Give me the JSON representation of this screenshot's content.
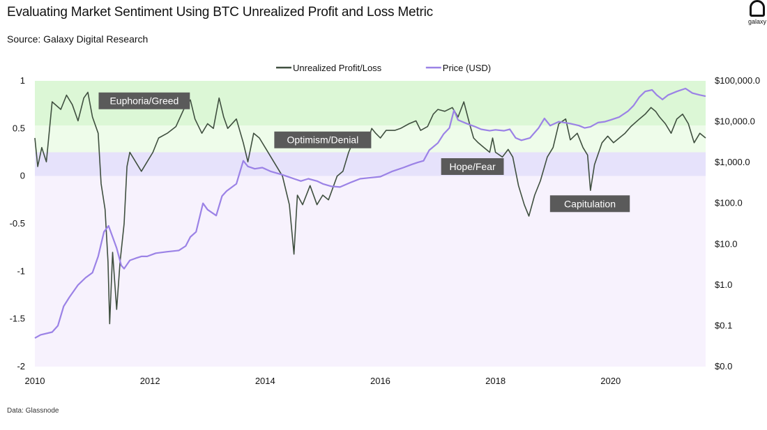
{
  "title": "Evaluating Market Sentiment Using BTC Unrealized Profit and Loss Metric",
  "subtitle": "Source: Galaxy Digital Research",
  "footnote": "Data: Glassnode",
  "logo_text": "galaxy",
  "colors": {
    "upl_line": "#3f4f3f",
    "price_line": "#9b82e6",
    "zone_euphoria": "#dcf7d6",
    "zone_optimism": "#eefcea",
    "zone_hope": "#e6e2fb",
    "zone_capitulation": "#f7f2fd",
    "label_bg": "#5a5a5a"
  },
  "chart_data": {
    "type": "line",
    "legend": {
      "position": "top-center",
      "entries": [
        "Unrealized Profit/Loss",
        "Price (USD)"
      ]
    },
    "x_ticks": [
      "2010",
      "2012",
      "2014",
      "2016",
      "2018",
      "2020"
    ],
    "x_range": [
      2010.0,
      2021.65
    ],
    "y_left": {
      "range": [
        -2,
        1
      ],
      "ticks": [
        1,
        0.5,
        0,
        -0.5,
        -1,
        -1.5,
        -2
      ],
      "tick_labels": [
        "1",
        "0.5",
        "0",
        "-0.5",
        "-1",
        "-1.5",
        "-2"
      ]
    },
    "y_right": {
      "scale": "log",
      "range": [
        0.01,
        100000
      ],
      "ticks": [
        100000,
        10000,
        1000,
        100,
        10,
        1,
        0.1,
        0.01
      ],
      "tick_labels": [
        "$100,000.0",
        "$10,000.0",
        "$1,000.0",
        "$100.0",
        "$10.0",
        "$1.0",
        "$0.1",
        "$0.0"
      ]
    },
    "zones": [
      {
        "name": "Euphoria/Greed",
        "from": 0.53,
        "to": 1.0
      },
      {
        "name": "Optimism/Denial",
        "from": 0.25,
        "to": 0.53
      },
      {
        "name": "Hope/Fear",
        "from": 0.0,
        "to": 0.25
      },
      {
        "name": "Capitulation",
        "from": -2.0,
        "to": 0.0
      }
    ],
    "zone_labels": [
      {
        "text": "Euphoria/Greed",
        "x": 2011.9,
        "y": 0.79
      },
      {
        "text": "Optimism/Denial",
        "x": 2015.0,
        "y": 0.38
      },
      {
        "text": "Hope/Fear",
        "x": 2017.6,
        "y": 0.1
      },
      {
        "text": "Capitulation",
        "x": 2019.64,
        "y": -0.29
      }
    ],
    "series": [
      {
        "name": "Unrealized Profit/Loss",
        "axis": "left",
        "points": [
          [
            2010.0,
            0.4
          ],
          [
            2010.05,
            0.1
          ],
          [
            2010.12,
            0.3
          ],
          [
            2010.2,
            0.15
          ],
          [
            2010.3,
            0.78
          ],
          [
            2010.45,
            0.7
          ],
          [
            2010.55,
            0.85
          ],
          [
            2010.65,
            0.75
          ],
          [
            2010.75,
            0.58
          ],
          [
            2010.85,
            0.82
          ],
          [
            2010.92,
            0.88
          ],
          [
            2011.0,
            0.62
          ],
          [
            2011.1,
            0.45
          ],
          [
            2011.15,
            -0.08
          ],
          [
            2011.22,
            -0.35
          ],
          [
            2011.27,
            -0.9
          ],
          [
            2011.3,
            -1.55
          ],
          [
            2011.35,
            -0.8
          ],
          [
            2011.42,
            -1.4
          ],
          [
            2011.48,
            -0.9
          ],
          [
            2011.55,
            -0.5
          ],
          [
            2011.6,
            0.1
          ],
          [
            2011.65,
            0.25
          ],
          [
            2011.75,
            0.15
          ],
          [
            2011.85,
            0.05
          ],
          [
            2011.95,
            0.15
          ],
          [
            2012.05,
            0.25
          ],
          [
            2012.15,
            0.4
          ],
          [
            2012.3,
            0.45
          ],
          [
            2012.45,
            0.52
          ],
          [
            2012.6,
            0.72
          ],
          [
            2012.7,
            0.8
          ],
          [
            2012.78,
            0.6
          ],
          [
            2012.9,
            0.45
          ],
          [
            2013.0,
            0.55
          ],
          [
            2013.1,
            0.5
          ],
          [
            2013.2,
            0.82
          ],
          [
            2013.28,
            0.62
          ],
          [
            2013.35,
            0.5
          ],
          [
            2013.5,
            0.6
          ],
          [
            2013.62,
            0.35
          ],
          [
            2013.7,
            0.15
          ],
          [
            2013.8,
            0.45
          ],
          [
            2013.9,
            0.4
          ],
          [
            2014.0,
            0.3
          ],
          [
            2014.15,
            0.15
          ],
          [
            2014.3,
            0.0
          ],
          [
            2014.42,
            -0.3
          ],
          [
            2014.5,
            -0.82
          ],
          [
            2014.56,
            -0.2
          ],
          [
            2014.65,
            -0.3
          ],
          [
            2014.78,
            -0.1
          ],
          [
            2014.9,
            -0.3
          ],
          [
            2015.0,
            -0.2
          ],
          [
            2015.1,
            -0.25
          ],
          [
            2015.25,
            0.0
          ],
          [
            2015.35,
            0.05
          ],
          [
            2015.45,
            0.25
          ],
          [
            2015.52,
            0.35
          ],
          [
            2015.6,
            0.35
          ],
          [
            2015.75,
            0.3
          ],
          [
            2015.85,
            0.5
          ],
          [
            2015.92,
            0.45
          ],
          [
            2016.0,
            0.4
          ],
          [
            2016.1,
            0.48
          ],
          [
            2016.25,
            0.48
          ],
          [
            2016.35,
            0.5
          ],
          [
            2016.5,
            0.55
          ],
          [
            2016.62,
            0.58
          ],
          [
            2016.7,
            0.48
          ],
          [
            2016.82,
            0.52
          ],
          [
            2016.92,
            0.65
          ],
          [
            2017.0,
            0.7
          ],
          [
            2017.12,
            0.68
          ],
          [
            2017.25,
            0.72
          ],
          [
            2017.35,
            0.62
          ],
          [
            2017.45,
            0.78
          ],
          [
            2017.55,
            0.55
          ],
          [
            2017.62,
            0.4
          ],
          [
            2017.7,
            0.35
          ],
          [
            2017.8,
            0.3
          ],
          [
            2017.9,
            0.25
          ],
          [
            2017.95,
            0.4
          ],
          [
            2018.0,
            0.25
          ],
          [
            2018.12,
            0.2
          ],
          [
            2018.22,
            0.28
          ],
          [
            2018.3,
            0.2
          ],
          [
            2018.4,
            -0.1
          ],
          [
            2018.5,
            -0.3
          ],
          [
            2018.58,
            -0.42
          ],
          [
            2018.68,
            -0.2
          ],
          [
            2018.78,
            -0.05
          ],
          [
            2018.9,
            0.2
          ],
          [
            2019.0,
            0.3
          ],
          [
            2019.1,
            0.55
          ],
          [
            2019.22,
            0.6
          ],
          [
            2019.3,
            0.38
          ],
          [
            2019.42,
            0.45
          ],
          [
            2019.52,
            0.3
          ],
          [
            2019.6,
            0.22
          ],
          [
            2019.65,
            -0.15
          ],
          [
            2019.72,
            0.12
          ],
          [
            2019.85,
            0.35
          ],
          [
            2019.95,
            0.42
          ],
          [
            2020.05,
            0.35
          ],
          [
            2020.15,
            0.4
          ],
          [
            2020.25,
            0.45
          ],
          [
            2020.35,
            0.52
          ],
          [
            2020.5,
            0.6
          ],
          [
            2020.6,
            0.65
          ],
          [
            2020.7,
            0.72
          ],
          [
            2020.78,
            0.68
          ],
          [
            2020.85,
            0.62
          ],
          [
            2020.95,
            0.55
          ],
          [
            2021.05,
            0.45
          ],
          [
            2021.15,
            0.6
          ],
          [
            2021.25,
            0.65
          ],
          [
            2021.35,
            0.55
          ],
          [
            2021.45,
            0.35
          ],
          [
            2021.55,
            0.45
          ],
          [
            2021.65,
            0.4
          ]
        ]
      },
      {
        "name": "Price (USD)",
        "axis": "right",
        "points": [
          [
            2010.0,
            0.05
          ],
          [
            2010.1,
            0.06
          ],
          [
            2010.3,
            0.07
          ],
          [
            2010.4,
            0.1
          ],
          [
            2010.5,
            0.3
          ],
          [
            2010.6,
            0.5
          ],
          [
            2010.75,
            1.0
          ],
          [
            2010.88,
            1.5
          ],
          [
            2011.0,
            2.0
          ],
          [
            2011.1,
            5
          ],
          [
            2011.2,
            20
          ],
          [
            2011.28,
            28
          ],
          [
            2011.35,
            15
          ],
          [
            2011.42,
            8
          ],
          [
            2011.5,
            3
          ],
          [
            2011.55,
            2.5
          ],
          [
            2011.65,
            4
          ],
          [
            2011.75,
            4.5
          ],
          [
            2011.85,
            5
          ],
          [
            2011.95,
            5
          ],
          [
            2012.1,
            6
          ],
          [
            2012.3,
            6.5
          ],
          [
            2012.5,
            7
          ],
          [
            2012.62,
            9
          ],
          [
            2012.7,
            15
          ],
          [
            2012.8,
            20
          ],
          [
            2012.92,
            100
          ],
          [
            2013.0,
            70
          ],
          [
            2013.15,
            50
          ],
          [
            2013.25,
            150
          ],
          [
            2013.33,
            200
          ],
          [
            2013.5,
            300
          ],
          [
            2013.62,
            1100
          ],
          [
            2013.7,
            800
          ],
          [
            2013.82,
            700
          ],
          [
            2013.95,
            750
          ],
          [
            2014.1,
            600
          ],
          [
            2014.3,
            500
          ],
          [
            2014.5,
            400
          ],
          [
            2014.62,
            350
          ],
          [
            2014.75,
            400
          ],
          [
            2014.9,
            350
          ],
          [
            2015.0,
            300
          ],
          [
            2015.15,
            260
          ],
          [
            2015.3,
            250
          ],
          [
            2015.5,
            330
          ],
          [
            2015.65,
            400
          ],
          [
            2015.8,
            420
          ],
          [
            2016.0,
            450
          ],
          [
            2016.2,
            600
          ],
          [
            2016.4,
            750
          ],
          [
            2016.55,
            900
          ],
          [
            2016.65,
            1000
          ],
          [
            2016.75,
            1100
          ],
          [
            2016.85,
            2000
          ],
          [
            2017.0,
            3000
          ],
          [
            2017.1,
            5000
          ],
          [
            2017.2,
            7000
          ],
          [
            2017.28,
            19000
          ],
          [
            2017.35,
            11000
          ],
          [
            2017.5,
            9000
          ],
          [
            2017.65,
            7500
          ],
          [
            2017.75,
            6500
          ],
          [
            2017.9,
            6000
          ],
          [
            2018.0,
            6300
          ],
          [
            2018.15,
            6000
          ],
          [
            2018.25,
            6500
          ],
          [
            2018.35,
            4000
          ],
          [
            2018.45,
            3500
          ],
          [
            2018.6,
            4000
          ],
          [
            2018.75,
            7000
          ],
          [
            2018.85,
            12000
          ],
          [
            2018.95,
            8000
          ],
          [
            2019.1,
            10000
          ],
          [
            2019.3,
            9000
          ],
          [
            2019.45,
            8000
          ],
          [
            2019.55,
            7000
          ],
          [
            2019.65,
            7500
          ],
          [
            2019.78,
            9500
          ],
          [
            2019.9,
            10000
          ],
          [
            2020.0,
            11000
          ],
          [
            2020.15,
            13000
          ],
          [
            2020.3,
            18000
          ],
          [
            2020.4,
            25000
          ],
          [
            2020.5,
            40000
          ],
          [
            2020.6,
            55000
          ],
          [
            2020.72,
            60000
          ],
          [
            2020.8,
            45000
          ],
          [
            2020.9,
            35000
          ],
          [
            2021.0,
            45000
          ],
          [
            2021.15,
            55000
          ],
          [
            2021.3,
            65000
          ],
          [
            2021.42,
            50000
          ],
          [
            2021.55,
            45000
          ],
          [
            2021.65,
            42000
          ]
        ]
      }
    ]
  }
}
